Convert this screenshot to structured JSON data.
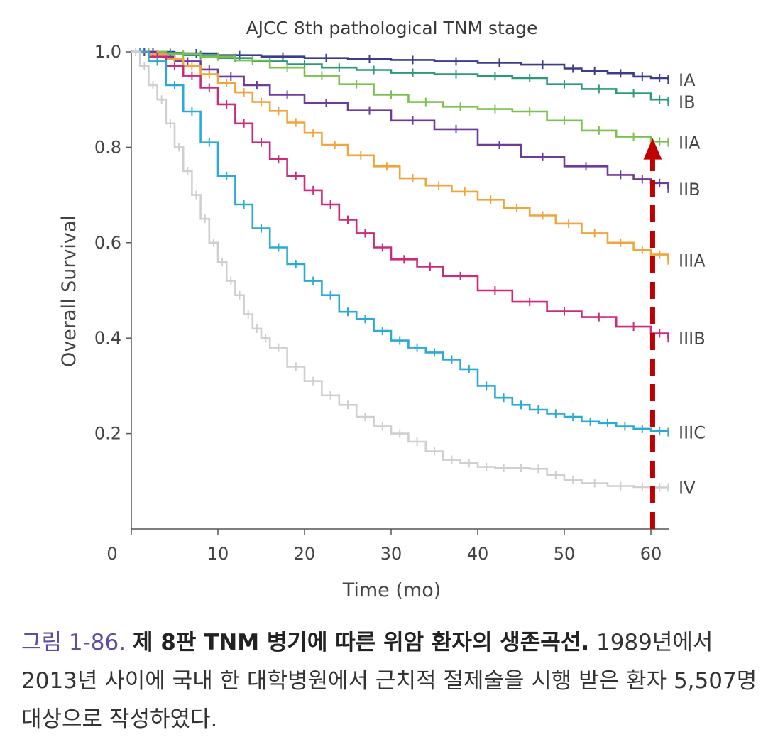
{
  "chart_data": {
    "type": "line",
    "step": true,
    "title": "AJCC 8th pathological TNM stage",
    "xlabel": "Time (mo)",
    "ylabel": "Overall Survival",
    "xlim": [
      0,
      62
    ],
    "ylim": [
      0,
      1.0
    ],
    "xticks": [
      "0",
      "10",
      "20",
      "30",
      "40",
      "50",
      "60"
    ],
    "yticks": [
      "0.2",
      "0.4",
      "0.6",
      "0.8",
      "1.0"
    ],
    "grid": false,
    "legend": "right-end labels",
    "annotation": {
      "type": "dashed-arrow",
      "x": 60.2,
      "y_from": 0,
      "y_to": 0.81,
      "color": "#c00000"
    },
    "series": [
      {
        "name": "IA",
        "color": "#3b3c8c",
        "x": [
          0,
          5,
          10,
          15,
          20,
          25,
          30,
          35,
          40,
          45,
          50,
          52,
          55,
          58,
          60,
          62
        ],
        "y": [
          1.0,
          0.997,
          0.993,
          0.99,
          0.987,
          0.985,
          0.983,
          0.98,
          0.977,
          0.973,
          0.965,
          0.96,
          0.955,
          0.948,
          0.945,
          0.942
        ]
      },
      {
        "name": "IB",
        "color": "#2a9a7a",
        "x": [
          0,
          3,
          6,
          10,
          14,
          18,
          22,
          26,
          30,
          35,
          40,
          44,
          48,
          52,
          56,
          60,
          62
        ],
        "y": [
          1.0,
          0.998,
          0.993,
          0.987,
          0.98,
          0.974,
          0.967,
          0.962,
          0.956,
          0.953,
          0.949,
          0.945,
          0.932,
          0.922,
          0.913,
          0.9,
          0.896
        ]
      },
      {
        "name": "IIA",
        "color": "#7cc050",
        "x": [
          0,
          4,
          8,
          12,
          16,
          20,
          24,
          28,
          32,
          36,
          40,
          44,
          48,
          52,
          56,
          60,
          62
        ],
        "y": [
          1.0,
          0.995,
          0.99,
          0.982,
          0.967,
          0.95,
          0.932,
          0.91,
          0.895,
          0.885,
          0.88,
          0.875,
          0.856,
          0.835,
          0.822,
          0.812,
          0.81
        ]
      },
      {
        "name": "IIB",
        "color": "#6e3a9c",
        "x": [
          0,
          3,
          5,
          8,
          10,
          13,
          16,
          20,
          25,
          30,
          35,
          40,
          45,
          50,
          55,
          58,
          60,
          62
        ],
        "y": [
          1.0,
          0.99,
          0.98,
          0.963,
          0.948,
          0.93,
          0.91,
          0.893,
          0.877,
          0.856,
          0.838,
          0.805,
          0.78,
          0.76,
          0.742,
          0.733,
          0.725,
          0.713
        ]
      },
      {
        "name": "IIIA",
        "color": "#f0a53c",
        "x": [
          0,
          2,
          4,
          6,
          8,
          10,
          12,
          14,
          16,
          18,
          20,
          22,
          25,
          28,
          31,
          34,
          37,
          40,
          43,
          46,
          49,
          52,
          55,
          58,
          60,
          62
        ],
        "y": [
          1.0,
          0.995,
          0.985,
          0.97,
          0.953,
          0.935,
          0.915,
          0.895,
          0.876,
          0.852,
          0.83,
          0.805,
          0.783,
          0.76,
          0.735,
          0.72,
          0.707,
          0.69,
          0.673,
          0.657,
          0.64,
          0.62,
          0.6,
          0.585,
          0.575,
          0.563
        ]
      },
      {
        "name": "IIIB",
        "color": "#cc2a7a",
        "x": [
          0,
          2,
          4,
          6,
          8,
          10,
          12,
          14,
          16,
          18,
          20,
          22,
          24,
          26,
          28,
          30,
          33,
          36,
          40,
          44,
          48,
          52,
          56,
          60,
          62
        ],
        "y": [
          1.0,
          0.99,
          0.97,
          0.95,
          0.925,
          0.89,
          0.85,
          0.81,
          0.775,
          0.74,
          0.71,
          0.68,
          0.648,
          0.62,
          0.59,
          0.565,
          0.55,
          0.53,
          0.5,
          0.476,
          0.456,
          0.444,
          0.424,
          0.41,
          0.4
        ]
      },
      {
        "name": "IIIC",
        "color": "#2aaad5",
        "x": [
          0,
          2,
          4,
          6,
          8,
          10,
          12,
          14,
          16,
          18,
          20,
          22,
          24,
          26,
          28,
          30,
          32,
          34,
          36,
          38,
          40,
          42,
          44,
          46,
          48,
          50,
          52,
          54,
          56,
          58,
          60,
          62
        ],
        "y": [
          1.0,
          0.98,
          0.93,
          0.875,
          0.81,
          0.74,
          0.68,
          0.63,
          0.59,
          0.555,
          0.52,
          0.49,
          0.455,
          0.44,
          0.415,
          0.395,
          0.38,
          0.37,
          0.355,
          0.335,
          0.3,
          0.275,
          0.26,
          0.25,
          0.242,
          0.235,
          0.225,
          0.222,
          0.215,
          0.21,
          0.205,
          0.203
        ]
      },
      {
        "name": "IV",
        "color": "#cfcfcf",
        "x": [
          0,
          1,
          2,
          3,
          4,
          5,
          6,
          7,
          8,
          9,
          10,
          11,
          12,
          13,
          14,
          15,
          16,
          18,
          20,
          22,
          24,
          26,
          28,
          30,
          32,
          34,
          36,
          38,
          40,
          42,
          44,
          46,
          48,
          50,
          52,
          55,
          58,
          60,
          62
        ],
        "y": [
          1.0,
          0.97,
          0.93,
          0.9,
          0.85,
          0.8,
          0.75,
          0.7,
          0.65,
          0.6,
          0.56,
          0.52,
          0.49,
          0.45,
          0.42,
          0.4,
          0.38,
          0.34,
          0.31,
          0.28,
          0.26,
          0.235,
          0.215,
          0.2,
          0.183,
          0.163,
          0.145,
          0.138,
          0.13,
          0.128,
          0.128,
          0.126,
          0.113,
          0.103,
          0.096,
          0.09,
          0.088,
          0.087,
          0.087
        ]
      }
    ]
  },
  "caption": {
    "figure_number": "그림 1-86.",
    "title": "제 8판 TNM 병기에 따른 위암 환자의 생존곡선.",
    "body": " 1989년에서 2013년 사이에 국내 한 대학병원에서 근치적 절제술을 시행 받은 환자 5,507명 대상으로 작성하였다."
  }
}
